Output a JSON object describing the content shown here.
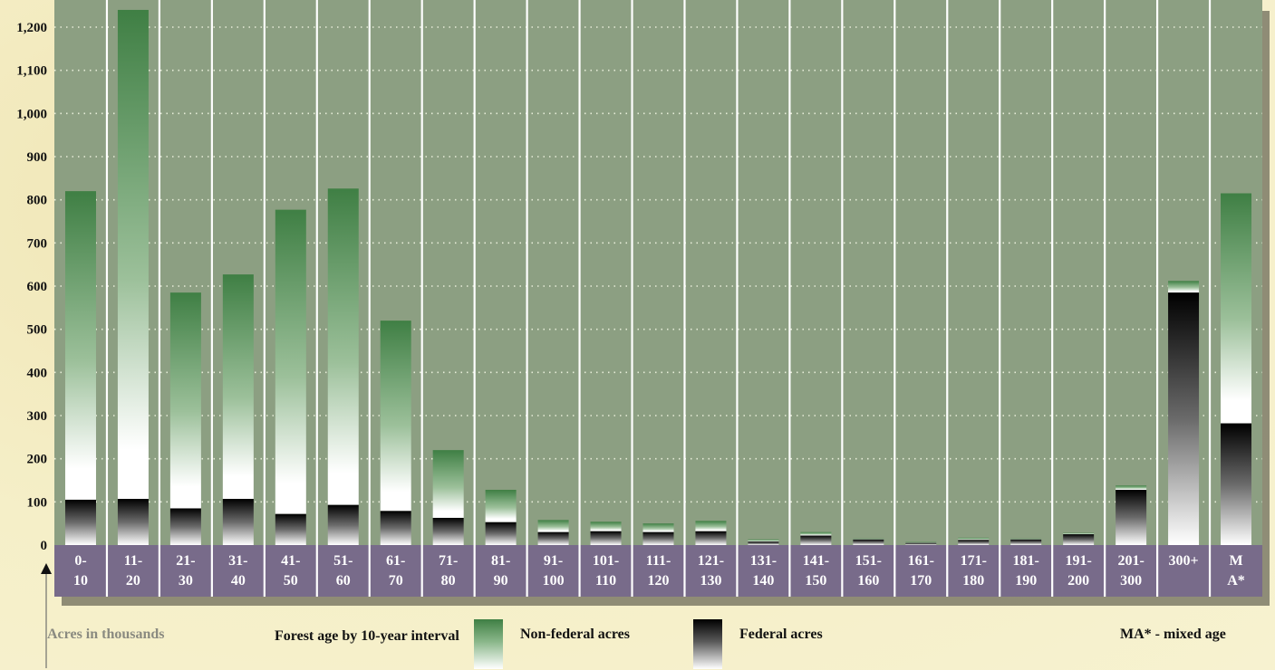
{
  "chart_data": {
    "type": "bar",
    "stacked": true,
    "categories": [
      [
        "0-",
        "10"
      ],
      [
        "11-",
        "20"
      ],
      [
        "21-",
        "30"
      ],
      [
        "31-",
        "40"
      ],
      [
        "41-",
        "50"
      ],
      [
        "51-",
        "60"
      ],
      [
        "61-",
        "70"
      ],
      [
        "71-",
        "80"
      ],
      [
        "81-",
        "90"
      ],
      [
        "91-",
        "100"
      ],
      [
        "101-",
        "110"
      ],
      [
        "111-",
        "120"
      ],
      [
        "121-",
        "130"
      ],
      [
        "131-",
        "140"
      ],
      [
        "141-",
        "150"
      ],
      [
        "151-",
        "160"
      ],
      [
        "161-",
        "170"
      ],
      [
        "171-",
        "180"
      ],
      [
        "181-",
        "190"
      ],
      [
        "191-",
        "200"
      ],
      [
        "201-",
        "300"
      ],
      [
        "300+",
        ""
      ],
      [
        "M",
        "A*"
      ]
    ],
    "series": [
      {
        "name": "Federal acres",
        "color": "#000000",
        "values": [
          105,
          107,
          85,
          107,
          72,
          93,
          79,
          63,
          53,
          30,
          32,
          30,
          32,
          8,
          22,
          13,
          5,
          12,
          13,
          25,
          128,
          585,
          282
        ]
      },
      {
        "name": "Non-federal acres",
        "color": "#3f7f44",
        "values": [
          715,
          1133,
          500,
          520,
          705,
          733,
          441,
          157,
          75,
          28,
          22,
          20,
          24,
          5,
          8,
          2,
          2,
          5,
          2,
          3,
          10,
          27,
          533
        ]
      }
    ],
    "y_ticks": [
      "0",
      "100",
      "200",
      "300",
      "400",
      "500",
      "600",
      "700",
      "800",
      "900",
      "1,000",
      "1,100",
      "1,200"
    ],
    "ylim": [
      0,
      1200
    ],
    "grid": "horizontal dotted",
    "ylabel": "Acres in thousands",
    "xlabel": "Forest age by 10-year interval",
    "note": "MA* - mixed age"
  },
  "colors": {
    "plot_background": "#8c9f82",
    "axis_band": "#786b8a",
    "page_background": "#f3ecc0",
    "nonfederal_green": "#3f7f44",
    "federal_black": "#000000"
  },
  "icons": {
    "y_axis": "up-arrow-icon"
  }
}
